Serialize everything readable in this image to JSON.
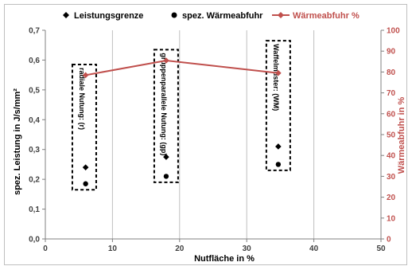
{
  "chart_data": {
    "type": "scatter",
    "xlabel": "Nutfläche in %",
    "ylabel": "spez. Leistung in J/s/mm²",
    "y2label": "Wärmeabfuhr in %",
    "xlim": [
      0,
      50
    ],
    "ylim": [
      0,
      0.7
    ],
    "y2lim": [
      0,
      100
    ],
    "x_ticks": [
      "0",
      "10",
      "20",
      "30",
      "40",
      "50"
    ],
    "y_ticks": [
      "0,0",
      "0,1",
      "0,2",
      "0,3",
      "0,4",
      "0,5",
      "0,6",
      "0,7"
    ],
    "y2_ticks": [
      "0",
      "10",
      "20",
      "30",
      "40",
      "50",
      "60",
      "70",
      "80",
      "90",
      "100"
    ],
    "grid": "vertical",
    "legend_position": "top",
    "series": [
      {
        "name": "Leistungsgrenze",
        "axis": "left",
        "marker": "diamond",
        "color": "#000000",
        "points": [
          {
            "x": 6.0,
            "y": 0.24
          },
          {
            "x": 18.0,
            "y": 0.275
          },
          {
            "x": 34.7,
            "y": 0.31
          }
        ]
      },
      {
        "name": "spez. Wärmeabfuhr",
        "axis": "left",
        "marker": "circle",
        "color": "#000000",
        "points": [
          {
            "x": 6.0,
            "y": 0.185
          },
          {
            "x": 18.0,
            "y": 0.21
          },
          {
            "x": 34.7,
            "y": 0.25
          }
        ]
      },
      {
        "name": "Wärmeabfuhr %",
        "axis": "right",
        "marker": "diamond-line",
        "color": "#c0504d",
        "points": [
          {
            "x": 6.0,
            "y": 78.5
          },
          {
            "x": 18.0,
            "y": 85.5
          },
          {
            "x": 34.7,
            "y": 79.5
          }
        ]
      }
    ],
    "annotations": [
      {
        "text": "radiale Nutung: (r)",
        "x_center": 5.8,
        "y_top": 0.585,
        "y_bottom": 0.165
      },
      {
        "text": "gruppenparallele Nutung: (gp)",
        "x_center": 18.0,
        "y_top": 0.635,
        "y_bottom": 0.19
      },
      {
        "text": "Waffelmuster: (WM)",
        "x_center": 34.7,
        "y_top": 0.665,
        "y_bottom": 0.23
      }
    ]
  }
}
